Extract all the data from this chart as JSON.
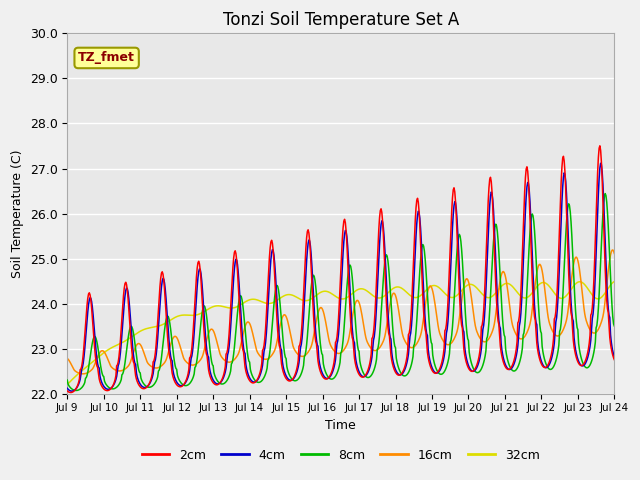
{
  "title": "Tonzi Soil Temperature Set A",
  "xlabel": "Time",
  "ylabel": "Soil Temperature (C)",
  "ylim": [
    22.0,
    30.0
  ],
  "yticks": [
    22.0,
    23.0,
    24.0,
    25.0,
    26.0,
    27.0,
    28.0,
    29.0,
    30.0
  ],
  "x_tick_labels": [
    "Jul 9",
    "Jul 10",
    "Jul 11",
    "Jul 12",
    "Jul 13",
    "Jul 14",
    "Jul 15",
    "Jul 16",
    "Jul 17",
    "Jul 18",
    "Jul 19",
    "Jul 20",
    "Jul 21",
    "Jul 22",
    "Jul 23",
    "Jul 24"
  ],
  "annotation_text": "TZ_fmet",
  "annotation_bg": "#FFFF99",
  "annotation_border": "#999900",
  "colors": {
    "2cm": "#FF0000",
    "4cm": "#0000CC",
    "8cm": "#00BB00",
    "16cm": "#FF8C00",
    "32cm": "#DDDD00"
  },
  "plot_bg": "#E8E8E8",
  "fig_bg": "#F0F0F0"
}
